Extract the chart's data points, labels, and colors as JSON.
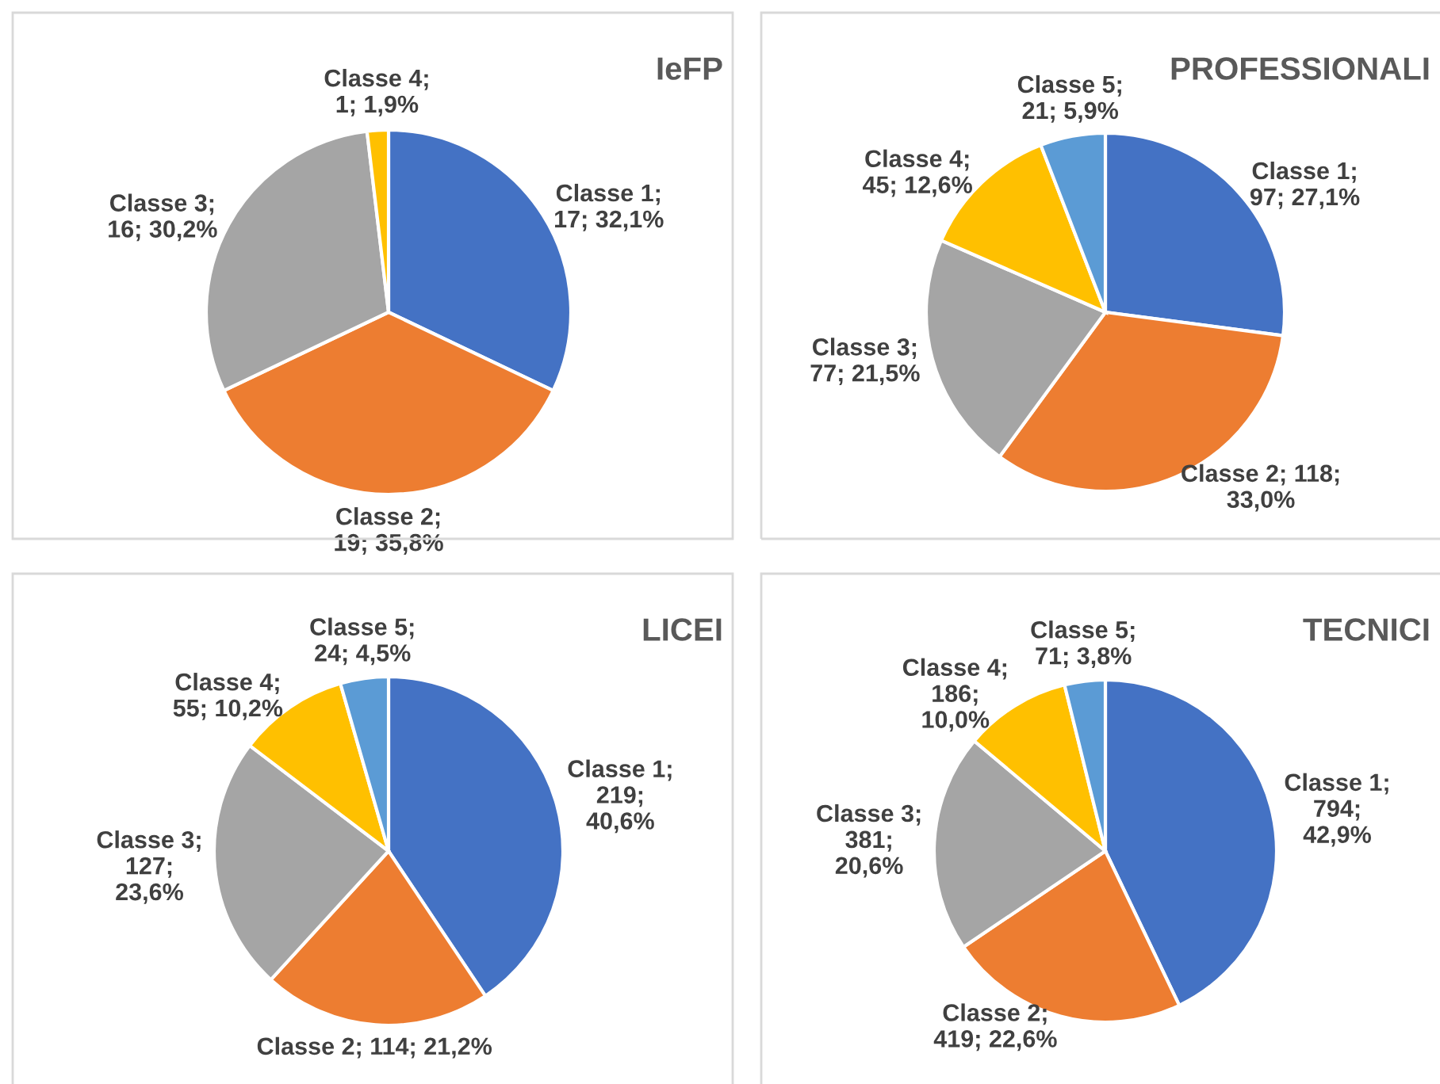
{
  "chart_data": [
    {
      "type": "pie",
      "title": "IeFP",
      "categories": [
        "Classe 1",
        "Classe 2",
        "Classe 3",
        "Classe 4"
      ],
      "values": [
        17,
        19,
        16,
        1
      ],
      "colors": [
        "#4472c4",
        "#ed7d31",
        "#a5a5a5",
        "#ffc000"
      ],
      "value_labels": [
        ";\n17; 32,1%",
        ";\n19; 35,8%",
        ";\n16; 30,2%",
        ";\n1; 1,9%"
      ]
    },
    {
      "type": "pie",
      "title": "PROFESSIONALI",
      "categories": [
        "Classe 1",
        "Classe 2",
        "Classe 3",
        "Classe 4",
        "Classe 5"
      ],
      "values": [
        97,
        118,
        77,
        45,
        21
      ],
      "colors": [
        "#4472c4",
        "#ed7d31",
        "#a5a5a5",
        "#ffc000",
        "#5b9bd5"
      ],
      "value_labels": [
        ";\n97; 27,1%",
        "; 118;\n33,0%",
        ";\n77; 21,5%",
        ";\n45; 12,6%",
        ";\n21; 5,9%"
      ]
    },
    {
      "type": "pie",
      "title": "LICEI",
      "categories": [
        "Classe 1",
        "Classe 2",
        "Classe 3",
        "Classe 4",
        "Classe 5"
      ],
      "values": [
        219,
        114,
        127,
        55,
        24
      ],
      "colors": [
        "#4472c4",
        "#ed7d31",
        "#a5a5a5",
        "#ffc000",
        "#5b9bd5"
      ],
      "value_labels": [
        ";\n219;\n40,6%",
        "; 114; 21,2%",
        ";\n127;\n23,6%",
        ";\n55; 10,2%",
        ";\n24; 4,5%"
      ]
    },
    {
      "type": "pie",
      "title": "TECNICI",
      "categories": [
        "Classe 1",
        "Classe 2",
        "Classe 3",
        "Classe 4",
        "Classe 5"
      ],
      "values": [
        794,
        419,
        381,
        186,
        71
      ],
      "colors": [
        "#4472c4",
        "#ed7d31",
        "#a5a5a5",
        "#ffc000",
        "#5b9bd5"
      ],
      "value_labels": [
        ";\n794;\n42,9%",
        ";\n419; 22,6%",
        ";\n381;\n20,6%",
        ";\n186;\n10,0%",
        ";\n71; 3,8%"
      ]
    }
  ]
}
